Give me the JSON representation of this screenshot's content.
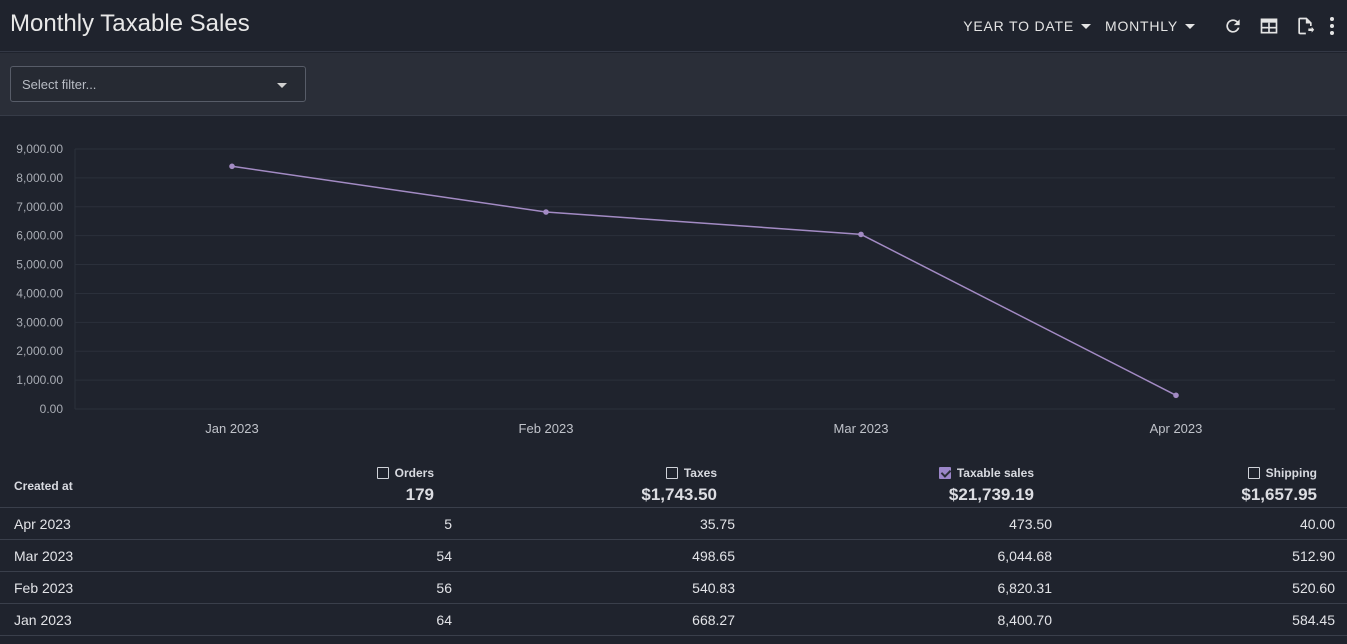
{
  "header": {
    "title": "Monthly Taxable Sales",
    "range_label": "YEAR TO DATE",
    "interval_label": "MONTHLY",
    "icons": [
      "refresh-icon",
      "table-view-icon",
      "export-icon",
      "more-vert-icon"
    ]
  },
  "filter": {
    "placeholder": "Select filter..."
  },
  "colors": {
    "line": "#a38bc4",
    "background": "#1f232d"
  },
  "chart_data": {
    "type": "line",
    "categories": [
      "Jan 2023",
      "Feb 2023",
      "Mar 2023",
      "Apr 2023"
    ],
    "series": [
      {
        "values": [
          8400.7,
          6820.31,
          6044.68,
          473.5
        ]
      }
    ],
    "yticks": [
      "0.00",
      "1,000.00",
      "2,000.00",
      "3,000.00",
      "4,000.00",
      "5,000.00",
      "6,000.00",
      "7,000.00",
      "8,000.00",
      "9,000.00"
    ],
    "ylim": [
      0,
      9000
    ],
    "grid": true,
    "title": "",
    "xlabel": "",
    "ylabel": ""
  },
  "table": {
    "row_header": "Created at",
    "columns": [
      {
        "name": "Orders",
        "total": "179",
        "checked": false
      },
      {
        "name": "Taxes",
        "total": "$1,743.50",
        "checked": false
      },
      {
        "name": "Taxable sales",
        "total": "$21,739.19",
        "checked": true
      },
      {
        "name": "Shipping",
        "total": "$1,657.95",
        "checked": false
      }
    ],
    "rows": [
      {
        "date": "Apr 2023",
        "orders": "5",
        "taxes": "35.75",
        "taxable": "473.50",
        "shipping": "40.00"
      },
      {
        "date": "Mar 2023",
        "orders": "54",
        "taxes": "498.65",
        "taxable": "6,044.68",
        "shipping": "512.90"
      },
      {
        "date": "Feb 2023",
        "orders": "56",
        "taxes": "540.83",
        "taxable": "6,820.31",
        "shipping": "520.60"
      },
      {
        "date": "Jan 2023",
        "orders": "64",
        "taxes": "668.27",
        "taxable": "8,400.70",
        "shipping": "584.45"
      }
    ]
  }
}
